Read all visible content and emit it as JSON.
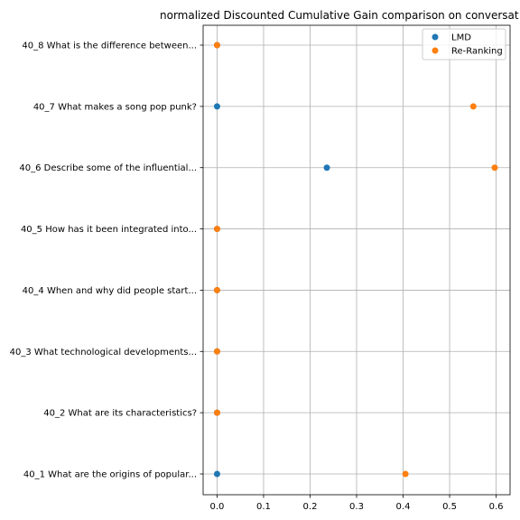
{
  "chart_data": {
    "type": "scatter",
    "title": "normalized Discounted Cumulative Gain comparison on conversat",
    "xlabel": "",
    "ylabel": "",
    "xlim": [
      -0.03,
      0.63
    ],
    "x_ticks": [
      "0.0",
      "0.1",
      "0.2",
      "0.3",
      "0.4",
      "0.5",
      "0.6"
    ],
    "x_tick_values": [
      0.0,
      0.1,
      0.2,
      0.3,
      0.4,
      0.5,
      0.6
    ],
    "categories": [
      "40_1 What are the origins of popular...",
      "40_2 What are its characteristics?",
      "40_3 What technological developments...",
      "40_4 When and why did people start...",
      "40_5 How has it been integrated into...",
      "40_6 Describe some of the influential...",
      "40_7 What makes a song pop punk?",
      "40_8 What is the difference between..."
    ],
    "series": [
      {
        "name": "LMD",
        "color": "#1f77b4",
        "values": [
          0.0,
          0.0,
          0.0,
          0.0,
          0.0,
          0.236,
          0.0,
          0.0
        ]
      },
      {
        "name": "Re-Ranking",
        "color": "#ff7f0e",
        "values": [
          0.405,
          0.0,
          0.0,
          0.0,
          0.0,
          0.597,
          0.551,
          0.0
        ]
      }
    ],
    "grid": true,
    "legend_position": "top-right"
  }
}
